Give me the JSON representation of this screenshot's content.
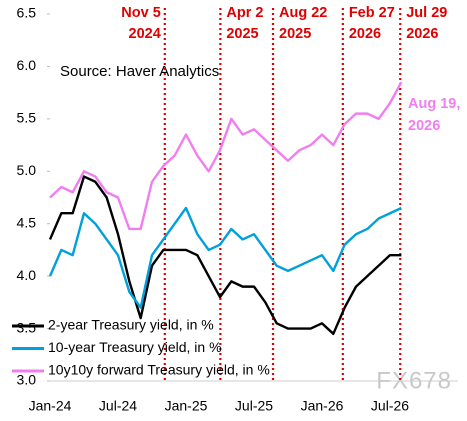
{
  "chart_data": {
    "type": "line",
    "source": "Source: Haver Analytics",
    "categories": [
      "Jan-24",
      null,
      null,
      null,
      null,
      null,
      "Jul-24",
      null,
      null,
      null,
      null,
      null,
      "Jan-25",
      null,
      null,
      null,
      null,
      null,
      "Jul-25",
      null,
      null,
      null,
      null,
      null,
      "Jan-26",
      null,
      null,
      null,
      null,
      null,
      "Jul-26",
      null,
      null,
      null,
      null,
      null
    ],
    "series": [
      {
        "name": "2-year Treasury yield, in %",
        "color": "#000000",
        "values": [
          4.35,
          4.6,
          4.6,
          4.95,
          4.9,
          4.75,
          4.4,
          3.95,
          3.6,
          4.1,
          4.25,
          4.25,
          4.25,
          4.2,
          4.0,
          3.8,
          3.95,
          3.9,
          3.9,
          3.75,
          3.55,
          3.5,
          3.5,
          3.5,
          3.55,
          3.45,
          3.7,
          3.9,
          4.0,
          4.1,
          4.2,
          4.2,
          null,
          null,
          null,
          null
        ]
      },
      {
        "name": "10-year Treasury yield, in %",
        "color": "#00a0dc",
        "values": [
          4.0,
          4.25,
          4.2,
          4.6,
          4.5,
          4.35,
          4.2,
          3.85,
          3.7,
          4.2,
          4.35,
          4.5,
          4.65,
          4.4,
          4.25,
          4.3,
          4.45,
          4.35,
          4.4,
          4.25,
          4.1,
          4.05,
          4.1,
          4.15,
          4.2,
          4.05,
          4.3,
          4.4,
          4.45,
          4.55,
          4.6,
          4.65,
          null,
          null,
          null,
          null
        ]
      },
      {
        "name": "10y10y forward Treasury yield, in %",
        "color": "#f07ef0",
        "values": [
          4.75,
          4.85,
          4.8,
          5.0,
          4.95,
          4.8,
          4.75,
          4.45,
          4.45,
          4.9,
          5.05,
          5.15,
          5.35,
          5.15,
          5.0,
          5.2,
          5.5,
          5.35,
          5.4,
          5.3,
          5.2,
          5.1,
          5.2,
          5.25,
          5.35,
          5.25,
          5.45,
          5.55,
          5.55,
          5.5,
          5.65,
          5.85,
          null,
          null,
          null,
          null
        ]
      }
    ],
    "ylim": [
      3,
      6.5
    ],
    "yticks": [
      {
        "value": 3,
        "label": "3.0"
      },
      3.5,
      {
        "value": 4,
        "label": "4.0"
      },
      4.5,
      {
        "value": 5,
        "label": "5.0"
      },
      5.5,
      {
        "value": 6,
        "label": "6.0"
      },
      6.5
    ],
    "event_color": "#e00000",
    "events": [
      [
        "Nov 5",
        "2024"
      ],
      [
        "Apr 2",
        "2025"
      ],
      [
        "Aug 22",
        "2025"
      ],
      [
        "Feb 27",
        "2026"
      ],
      [
        "Jul 29",
        "2026"
      ]
    ],
    "end_label": [
      "Aug 19,",
      "2026"
    ],
    "watermark": "FX678"
  }
}
